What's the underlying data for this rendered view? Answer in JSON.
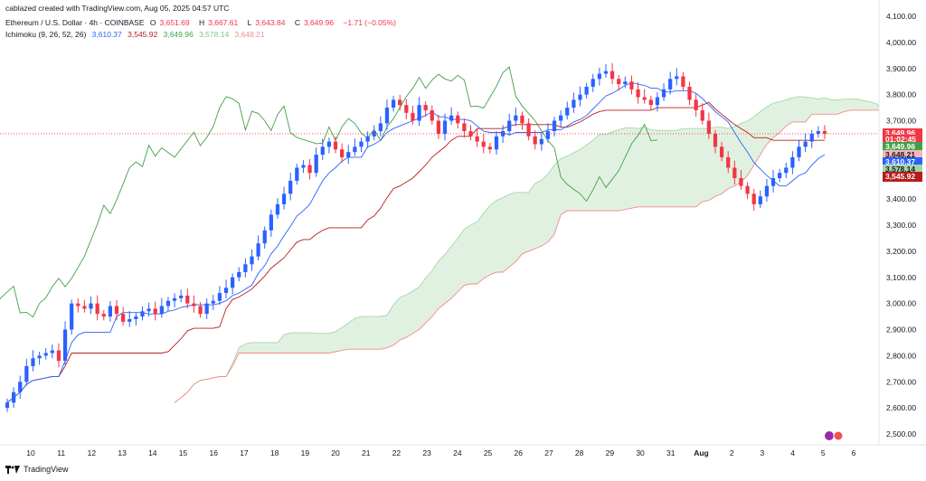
{
  "header": {
    "attribution": "cablazed created with TradingView.com, Aug 05, 2025 04:57 UTC",
    "symbol": "Ethereum / U.S. Dollar · 4h · COINBASE",
    "ohlc": {
      "o_label": "O",
      "o": "3,651.69",
      "h_label": "H",
      "h": "3,667.61",
      "l_label": "L",
      "l": "3,643.84",
      "c_label": "C",
      "c": "3,649.96",
      "change": "−1.71 (−0.05%)"
    },
    "indicator": {
      "name": "Ichimoku (9, 26, 52, 26)",
      "v1": "3,610.37",
      "v2": "3,545.92",
      "v3": "3,649.96",
      "v4": "3,578.14",
      "v5": "3,648.21"
    }
  },
  "price_tags": [
    {
      "text": "3,649.96",
      "price": 3649.96,
      "color": "#f23645",
      "textColor": "#ffffff"
    },
    {
      "text": "01:02:45",
      "price": 3627,
      "color": "#f23645",
      "textColor": "#ffffff"
    },
    {
      "text": "3,649.96",
      "price": 3600,
      "color": "#43a047",
      "textColor": "#ffffff"
    },
    {
      "text": "3,648.21",
      "price": 3570,
      "color": "#f6b6b6",
      "textColor": "#131722"
    },
    {
      "text": "3,610.37",
      "price": 3542,
      "color": "#2962ff",
      "textColor": "#ffffff"
    },
    {
      "text": "3,578.14",
      "price": 3514,
      "color": "#a5d6a7",
      "textColor": "#131722"
    },
    {
      "text": "3,545.92",
      "price": 3486,
      "color": "#b71c1c",
      "textColor": "#ffffff"
    }
  ],
  "footer": {
    "brand": "TradingView"
  },
  "colors": {
    "up": "#2962ff",
    "down": "#f23645",
    "tenkan": "#2962ff",
    "kijun": "#b71c1c",
    "chikou": "#43a047",
    "spanA": "#a5d6a7",
    "spanB": "#f48a8a",
    "cloud_up": "#c8e6c9",
    "cloud_down": "#ffcdd2"
  },
  "chart_data": {
    "type": "candlestick",
    "ylim": [
      2500,
      4100
    ],
    "y_ticks": [
      "2,500.00",
      "2,600.00",
      "2,700.00",
      "2,800.00",
      "2,900.00",
      "3,000.00",
      "3,100.00",
      "3,200.00",
      "3,300.00",
      "3,400.00",
      "3,500.00",
      "3,600.00",
      "3,700.00",
      "3,800.00",
      "3,900.00",
      "4,000.00",
      "4,100.00"
    ],
    "y_tick_values": [
      2500,
      2600,
      2700,
      2800,
      2900,
      3000,
      3100,
      3200,
      3300,
      3400,
      3500,
      3600,
      3700,
      3800,
      3900,
      4000,
      4100
    ],
    "x_ticks": [
      "10",
      "11",
      "12",
      "13",
      "14",
      "15",
      "16",
      "17",
      "18",
      "19",
      "20",
      "21",
      "22",
      "23",
      "24",
      "25",
      "26",
      "27",
      "28",
      "29",
      "30",
      "31",
      "Aug",
      "2",
      "3",
      "4",
      "5",
      "6"
    ],
    "candles_close": [
      2620,
      2660,
      2700,
      2760,
      2790,
      2800,
      2810,
      2820,
      2780,
      2900,
      3000,
      2990,
      2980,
      3000,
      2960,
      2950,
      2990,
      2960,
      2930,
      2940,
      2950,
      2970,
      2980,
      2960,
      2990,
      3010,
      3020,
      3030,
      3000,
      2990,
      2960,
      3000,
      3010,
      3040,
      3060,
      3100,
      3120,
      3150,
      3180,
      3230,
      3280,
      3340,
      3380,
      3420,
      3470,
      3520,
      3530,
      3500,
      3570,
      3600,
      3620,
      3590,
      3560,
      3580,
      3600,
      3620,
      3640,
      3660,
      3690,
      3750,
      3780,
      3760,
      3730,
      3700,
      3760,
      3740,
      3700,
      3650,
      3700,
      3720,
      3690,
      3660,
      3640,
      3620,
      3600,
      3590,
      3640,
      3660,
      3700,
      3720,
      3690,
      3640,
      3610,
      3630,
      3660,
      3700,
      3720,
      3750,
      3780,
      3800,
      3830,
      3860,
      3880,
      3890,
      3860,
      3840,
      3850,
      3820,
      3790,
      3780,
      3760,
      3790,
      3820,
      3860,
      3870,
      3830,
      3780,
      3740,
      3700,
      3650,
      3600,
      3560,
      3520,
      3480,
      3450,
      3420,
      3380,
      3410,
      3450,
      3480,
      3500,
      3520,
      3560,
      3600,
      3620,
      3650,
      3660,
      3649.96
    ],
    "last_price": 3649.96,
    "tenkan_last": 3610.37,
    "kijun_last": 3545.92,
    "spanA_last": 3578.14,
    "spanB_last": 3648.21
  }
}
